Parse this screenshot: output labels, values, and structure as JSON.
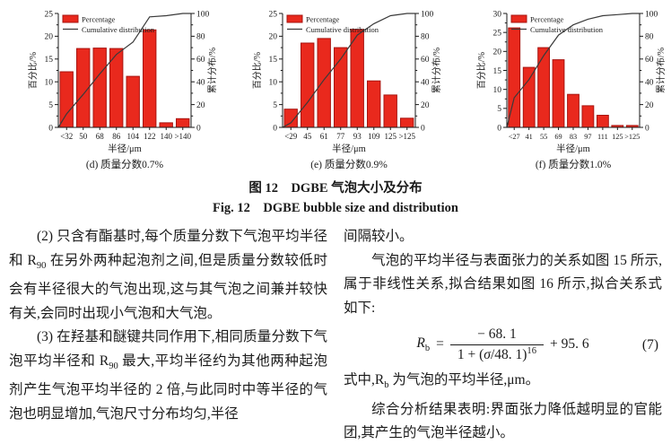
{
  "figure": {
    "caption_zh": "图 12　DGBE 气泡大小及分布",
    "caption_en": "Fig. 12　DGBE bubble size and distribution"
  },
  "chart_data": [
    {
      "type": "bar",
      "subcaption": "(d) 质量分数0.7%",
      "categories": [
        "<32",
        "50",
        "68",
        "86",
        "104",
        "122",
        "140",
        ">140"
      ],
      "values": [
        12.2,
        17.3,
        17.4,
        17.3,
        11.2,
        21.4,
        1.0,
        1.9
      ],
      "series": [
        {
          "name": "Percentage",
          "values": [
            12.2,
            17.3,
            17.4,
            17.3,
            11.2,
            21.4,
            1.0,
            1.9
          ]
        },
        {
          "name": "Cumulative distribution",
          "values": [
            12,
            29,
            47,
            64,
            75,
            97,
            98,
            100
          ]
        }
      ],
      "cumulative": [
        12,
        29,
        47,
        64,
        75,
        97,
        98,
        100
      ],
      "xlabel": "半径/μm",
      "ylabel": "百分比/%",
      "y2label": "累计分布/%",
      "ylim": [
        0,
        25
      ],
      "y2lim": [
        0,
        100
      ],
      "ytick_step": 5,
      "y2tick_step": 20,
      "legend": [
        "Percentage",
        "Cumulative distribution"
      ],
      "legend_position": "top-left-inside",
      "grid": false,
      "bar_color": "#e9291d",
      "bar_edge_color": "#a81410",
      "line_color": "#3a3a3a"
    },
    {
      "type": "bar",
      "subcaption": "(e) 质量分数0.9%",
      "categories": [
        "<29",
        "45",
        "61",
        "77",
        "93",
        "109",
        "125",
        ">125"
      ],
      "values": [
        4.0,
        18.5,
        19.5,
        17.5,
        21.5,
        10.2,
        7.1,
        2.0
      ],
      "series": [
        {
          "name": "Percentage",
          "values": [
            4.0,
            18.5,
            19.5,
            17.5,
            21.5,
            10.2,
            7.1,
            2.0
          ]
        },
        {
          "name": "Cumulative distribution",
          "values": [
            4,
            22,
            42,
            60,
            81,
            91,
            98,
            100
          ]
        }
      ],
      "cumulative": [
        4,
        22,
        42,
        60,
        81,
        91,
        98,
        100
      ],
      "xlabel": "半径/μm",
      "ylabel": "百分比/%",
      "y2label": "累计分布/%",
      "ylim": [
        0,
        25
      ],
      "y2lim": [
        0,
        100
      ],
      "ytick_step": 5,
      "y2tick_step": 20,
      "legend": [
        "Percentage",
        "Cumulative distribution"
      ],
      "legend_position": "top-left-inside",
      "grid": false,
      "bar_color": "#e9291d",
      "bar_edge_color": "#a81410",
      "line_color": "#3a3a3a"
    },
    {
      "type": "bar",
      "subcaption": "(f) 质量分数1.0%",
      "categories": [
        "<27",
        "41",
        "55",
        "69",
        "83",
        "97",
        "111",
        "125",
        ">125"
      ],
      "values": [
        26.2,
        15.8,
        21.0,
        17.8,
        8.7,
        5.7,
        3.2,
        0.5,
        0.5
      ],
      "series": [
        {
          "name": "Percentage",
          "values": [
            26.2,
            15.8,
            21.0,
            17.8,
            8.7,
            5.7,
            3.2,
            0.5,
            0.5
          ]
        },
        {
          "name": "Cumulative distribution",
          "values": [
            26,
            42,
            63,
            81,
            90,
            95,
            98,
            99,
            100
          ]
        }
      ],
      "cumulative": [
        26,
        42,
        63,
        81,
        90,
        95,
        98,
        99,
        100
      ],
      "xlabel": "半径/μm",
      "ylabel": "百分比/%",
      "y2label": "累计分布/%",
      "ylim": [
        0,
        30
      ],
      "y2lim": [
        0,
        100
      ],
      "ytick_step": 5,
      "y2tick_step": 20,
      "legend": [
        "Percentage",
        "Cumulative distribution"
      ],
      "legend_position": "top-left-inside",
      "grid": false,
      "bar_color": "#e9291d",
      "bar_edge_color": "#a81410",
      "line_color": "#3a3a3a"
    }
  ],
  "body": {
    "left_paragraphs": [
      {
        "indent": true,
        "text": "(2) 只含有酯基时,每个质量分数下气泡平均半径和 R_{90} 在另外两种起泡剂之间,但是质量分数较低时会有半径很大的气泡出现,这与其气泡之间兼并较快有关,会同时出现小气泡和大气泡。"
      },
      {
        "indent": true,
        "text": "(3) 在羟基和醚键共同作用下,相同质量分数下气泡平均半径和 R_{90} 最大,平均半径约为其他两种起泡剂产生气泡平均半径的 2 倍,与此同时中等半径的气泡也明显增加,气泡尺寸分布均匀,半径"
      }
    ],
    "right_top_paragraphs": [
      {
        "indent": false,
        "text": "间隔较小。"
      },
      {
        "indent": true,
        "text": "气泡的平均半径与表面张力的关系如图 15 所示,属于非线性关系,拟合结果如图 16 所示,拟合关系式如下:"
      }
    ],
    "right_bottom_paragraphs": [
      {
        "indent": false,
        "text": "式中,R_{b} 为气泡的平均半径,μm。"
      },
      {
        "indent": true,
        "text": "综合分析结果表明:界面张力降低越明显的官能团,其产生的气泡半径越小。"
      }
    ]
  },
  "equation": {
    "lhs": "R",
    "lhs_sub": "b",
    "equals": "=",
    "numerator": "− 68. 1",
    "denominator_pre": "1 + (",
    "denominator_var": "σ",
    "denominator_post": "/48. 1)",
    "denominator_exp": "16",
    "tail": "+ 95. 6",
    "label": "(7)"
  }
}
